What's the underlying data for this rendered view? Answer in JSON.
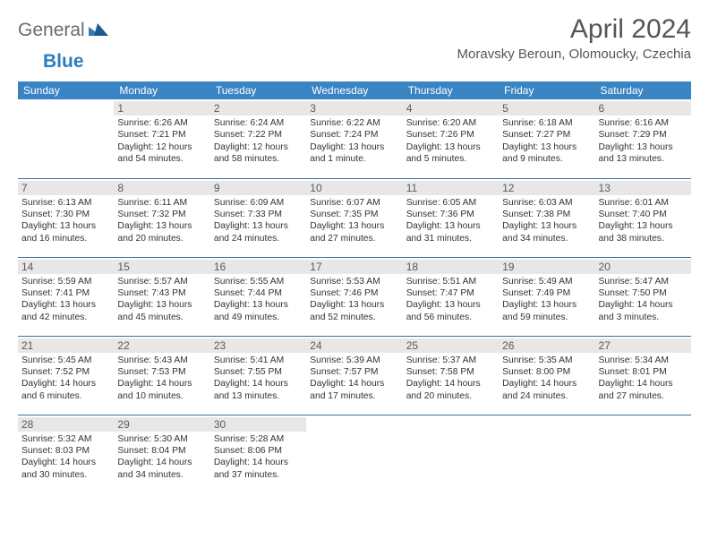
{
  "logo": {
    "general": "General",
    "blue": "Blue"
  },
  "title": "April 2024",
  "location": "Moravsky Beroun, Olomoucky, Czechia",
  "colors": {
    "header_bg": "#3b84c4",
    "header_text": "#ffffff",
    "row_border": "#3b6fa0",
    "daynum_bg": "#e8e7e5",
    "logo_gray": "#6b6b6b",
    "logo_blue": "#2e7cc0"
  },
  "weekdays": [
    "Sunday",
    "Monday",
    "Tuesday",
    "Wednesday",
    "Thursday",
    "Friday",
    "Saturday"
  ],
  "weeks": [
    [
      null,
      {
        "n": "1",
        "sr": "6:26 AM",
        "ss": "7:21 PM",
        "dl": "12 hours and 54 minutes."
      },
      {
        "n": "2",
        "sr": "6:24 AM",
        "ss": "7:22 PM",
        "dl": "12 hours and 58 minutes."
      },
      {
        "n": "3",
        "sr": "6:22 AM",
        "ss": "7:24 PM",
        "dl": "13 hours and 1 minute."
      },
      {
        "n": "4",
        "sr": "6:20 AM",
        "ss": "7:26 PM",
        "dl": "13 hours and 5 minutes."
      },
      {
        "n": "5",
        "sr": "6:18 AM",
        "ss": "7:27 PM",
        "dl": "13 hours and 9 minutes."
      },
      {
        "n": "6",
        "sr": "6:16 AM",
        "ss": "7:29 PM",
        "dl": "13 hours and 13 minutes."
      }
    ],
    [
      {
        "n": "7",
        "sr": "6:13 AM",
        "ss": "7:30 PM",
        "dl": "13 hours and 16 minutes."
      },
      {
        "n": "8",
        "sr": "6:11 AM",
        "ss": "7:32 PM",
        "dl": "13 hours and 20 minutes."
      },
      {
        "n": "9",
        "sr": "6:09 AM",
        "ss": "7:33 PM",
        "dl": "13 hours and 24 minutes."
      },
      {
        "n": "10",
        "sr": "6:07 AM",
        "ss": "7:35 PM",
        "dl": "13 hours and 27 minutes."
      },
      {
        "n": "11",
        "sr": "6:05 AM",
        "ss": "7:36 PM",
        "dl": "13 hours and 31 minutes."
      },
      {
        "n": "12",
        "sr": "6:03 AM",
        "ss": "7:38 PM",
        "dl": "13 hours and 34 minutes."
      },
      {
        "n": "13",
        "sr": "6:01 AM",
        "ss": "7:40 PM",
        "dl": "13 hours and 38 minutes."
      }
    ],
    [
      {
        "n": "14",
        "sr": "5:59 AM",
        "ss": "7:41 PM",
        "dl": "13 hours and 42 minutes."
      },
      {
        "n": "15",
        "sr": "5:57 AM",
        "ss": "7:43 PM",
        "dl": "13 hours and 45 minutes."
      },
      {
        "n": "16",
        "sr": "5:55 AM",
        "ss": "7:44 PM",
        "dl": "13 hours and 49 minutes."
      },
      {
        "n": "17",
        "sr": "5:53 AM",
        "ss": "7:46 PM",
        "dl": "13 hours and 52 minutes."
      },
      {
        "n": "18",
        "sr": "5:51 AM",
        "ss": "7:47 PM",
        "dl": "13 hours and 56 minutes."
      },
      {
        "n": "19",
        "sr": "5:49 AM",
        "ss": "7:49 PM",
        "dl": "13 hours and 59 minutes."
      },
      {
        "n": "20",
        "sr": "5:47 AM",
        "ss": "7:50 PM",
        "dl": "14 hours and 3 minutes."
      }
    ],
    [
      {
        "n": "21",
        "sr": "5:45 AM",
        "ss": "7:52 PM",
        "dl": "14 hours and 6 minutes."
      },
      {
        "n": "22",
        "sr": "5:43 AM",
        "ss": "7:53 PM",
        "dl": "14 hours and 10 minutes."
      },
      {
        "n": "23",
        "sr": "5:41 AM",
        "ss": "7:55 PM",
        "dl": "14 hours and 13 minutes."
      },
      {
        "n": "24",
        "sr": "5:39 AM",
        "ss": "7:57 PM",
        "dl": "14 hours and 17 minutes."
      },
      {
        "n": "25",
        "sr": "5:37 AM",
        "ss": "7:58 PM",
        "dl": "14 hours and 20 minutes."
      },
      {
        "n": "26",
        "sr": "5:35 AM",
        "ss": "8:00 PM",
        "dl": "14 hours and 24 minutes."
      },
      {
        "n": "27",
        "sr": "5:34 AM",
        "ss": "8:01 PM",
        "dl": "14 hours and 27 minutes."
      }
    ],
    [
      {
        "n": "28",
        "sr": "5:32 AM",
        "ss": "8:03 PM",
        "dl": "14 hours and 30 minutes."
      },
      {
        "n": "29",
        "sr": "5:30 AM",
        "ss": "8:04 PM",
        "dl": "14 hours and 34 minutes."
      },
      {
        "n": "30",
        "sr": "5:28 AM",
        "ss": "8:06 PM",
        "dl": "14 hours and 37 minutes."
      },
      null,
      null,
      null,
      null
    ]
  ],
  "labels": {
    "sunrise": "Sunrise:",
    "sunset": "Sunset:",
    "daylight": "Daylight:"
  }
}
